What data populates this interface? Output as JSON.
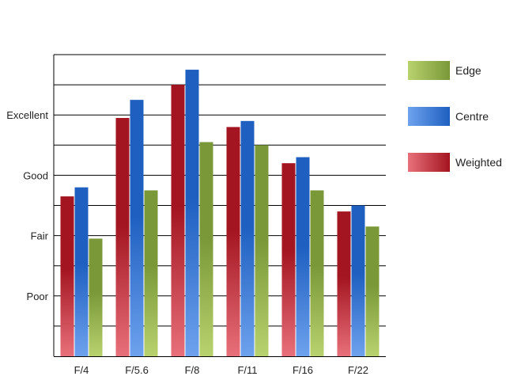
{
  "chart_data": {
    "type": "bar",
    "title": "",
    "xlabel": "",
    "ylabel": "",
    "categories": [
      "F/4",
      "F/5.6",
      "F/8",
      "F/11",
      "F/16",
      "F/22"
    ],
    "y_tick_labels": [
      {
        "value": 2,
        "label": "Poor"
      },
      {
        "value": 4,
        "label": "Fair"
      },
      {
        "value": 6,
        "label": "Good"
      },
      {
        "value": 8,
        "label": "Excellent"
      }
    ],
    "ylim": [
      0,
      10
    ],
    "grid": true,
    "legend_position": "right",
    "series": [
      {
        "name": "Weighted",
        "values": [
          5.3,
          7.9,
          9.0,
          7.6,
          6.4,
          4.8
        ],
        "color_dark": "#a31520",
        "color_light": "#e8707a"
      },
      {
        "name": "Centre",
        "values": [
          5.6,
          8.5,
          9.5,
          7.8,
          6.6,
          5.0
        ],
        "color_dark": "#1e5fc0",
        "color_light": "#6ea2ee"
      },
      {
        "name": "Edge",
        "values": [
          3.9,
          5.5,
          7.1,
          7.0,
          5.5,
          4.3
        ],
        "color_dark": "#7a9838",
        "color_light": "#b8d26e"
      }
    ],
    "legend_order": [
      "Edge",
      "Centre",
      "Weighted"
    ]
  }
}
